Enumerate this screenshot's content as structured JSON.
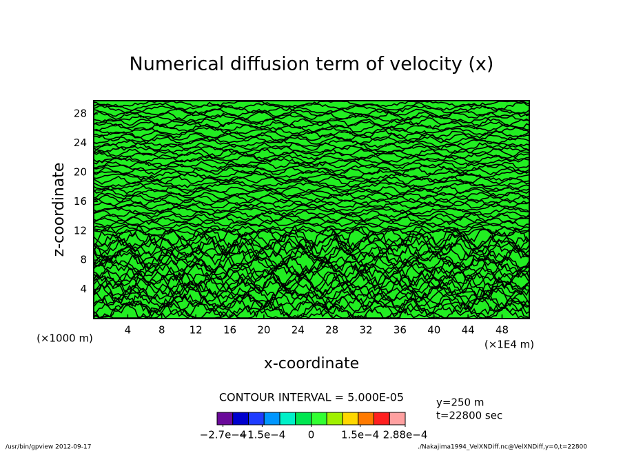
{
  "chart_data": {
    "type": "contour",
    "title": "Numerical diffusion term of velocity (x)",
    "xlabel": "x-coordinate",
    "ylabel": "z-coordinate",
    "x_unit": "(×1E4 m)",
    "y_unit": "(×1000 m)",
    "xlim": [
      0,
      51.2
    ],
    "xticks": [
      4,
      8,
      12,
      16,
      20,
      24,
      28,
      32,
      36,
      40,
      44,
      48
    ],
    "ylim": [
      0,
      29.8
    ],
    "yticks": [
      4,
      8,
      12,
      16,
      20,
      24,
      28
    ],
    "field_color": "#22ee22",
    "line_color": "#000000",
    "contour_interval": "CONTOUR INTERVAL = 5.000E-05",
    "annotations": [
      "y=250 m",
      "t=22800 sec"
    ],
    "footer_left": "/usr/bin/gpview  2012-09-17",
    "footer_right": "./Nakajima1994_VelXNDiff.nc@VelXNDiff,y=0,t=22800",
    "colorbar": {
      "clim": [
        -0.000288,
        0.000288
      ],
      "colors": [
        "#6a0a9a",
        "#0000cd",
        "#1e3cff",
        "#0096ff",
        "#00f0c8",
        "#00e650",
        "#32ff32",
        "#a0f000",
        "#ffd700",
        "#ff7a00",
        "#ff2020",
        "#ffa0a0"
      ],
      "ticks": [
        {
          "value": -0.00027,
          "label": "−2.7e−4"
        },
        {
          "value": -0.00015,
          "label": "−1.5e−4"
        },
        0,
        {
          "value": 0.00015,
          "label": "1.5e−4"
        },
        {
          "value": 0.000288,
          "label": "2.88e−4"
        }
      ]
    }
  }
}
